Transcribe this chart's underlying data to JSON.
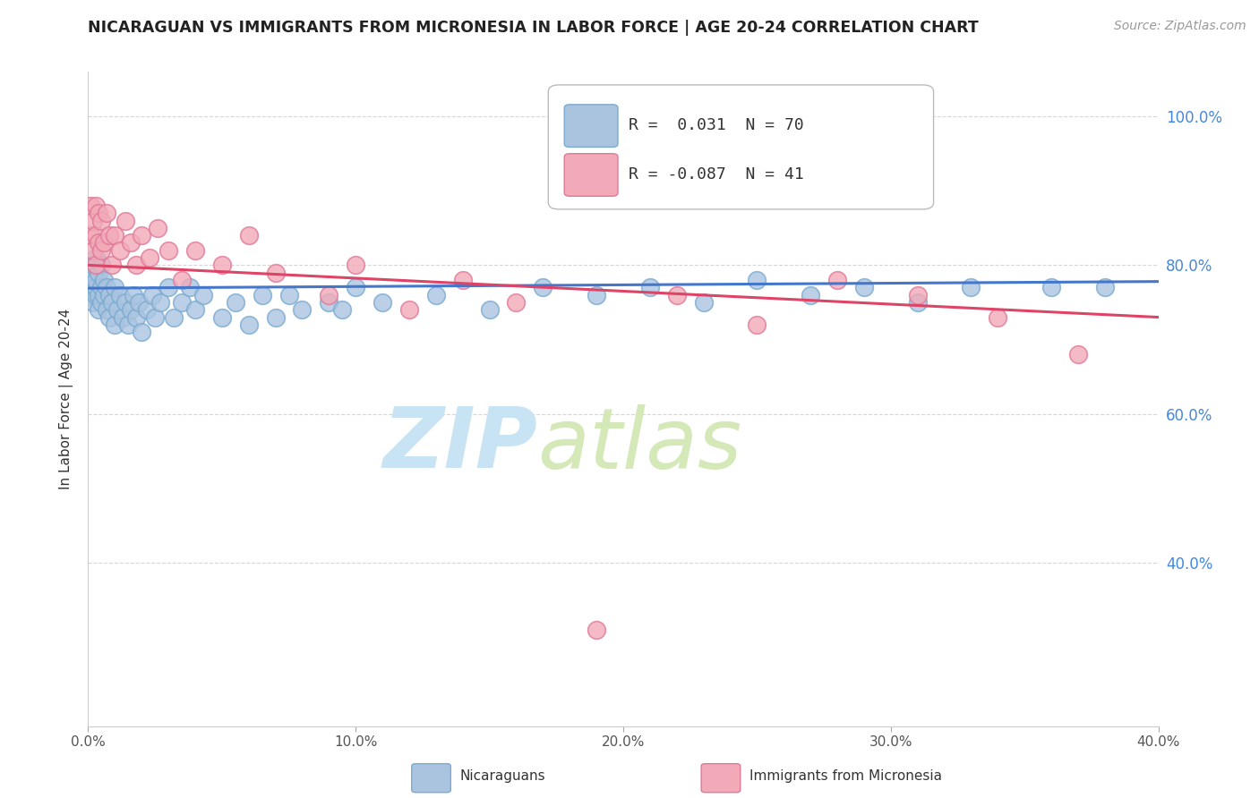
{
  "title": "NICARAGUAN VS IMMIGRANTS FROM MICRONESIA IN LABOR FORCE | AGE 20-24 CORRELATION CHART",
  "source": "Source: ZipAtlas.com",
  "ylabel": "In Labor Force | Age 20-24",
  "xmin": 0.0,
  "xmax": 0.4,
  "ymin": 0.18,
  "ymax": 1.06,
  "yticks": [
    0.4,
    0.6,
    0.8,
    1.0
  ],
  "ytick_labels": [
    "40.0%",
    "60.0%",
    "80.0%",
    "100.0%"
  ],
  "xticks": [
    0.0,
    0.1,
    0.2,
    0.3,
    0.4
  ],
  "xtick_labels": [
    "0.0%",
    "10.0%",
    "20.0%",
    "30.0%",
    "40.0%"
  ],
  "blue_R": 0.031,
  "blue_N": 70,
  "pink_R": -0.087,
  "pink_N": 41,
  "blue_color": "#aac4e0",
  "pink_color": "#f2aab8",
  "blue_edge": "#7aaad0",
  "pink_edge": "#e07898",
  "blue_line_color": "#4477cc",
  "pink_line_color": "#dd4466",
  "blue_trend_x": [
    0.0,
    0.4
  ],
  "blue_trend_y": [
    0.769,
    0.778
  ],
  "pink_trend_x": [
    0.0,
    0.4
  ],
  "pink_trend_y": [
    0.8,
    0.73
  ],
  "blue_x": [
    0.001,
    0.001,
    0.002,
    0.002,
    0.002,
    0.002,
    0.003,
    0.003,
    0.003,
    0.003,
    0.003,
    0.004,
    0.004,
    0.004,
    0.005,
    0.005,
    0.005,
    0.006,
    0.006,
    0.007,
    0.007,
    0.008,
    0.008,
    0.009,
    0.01,
    0.01,
    0.011,
    0.012,
    0.013,
    0.014,
    0.015,
    0.016,
    0.017,
    0.018,
    0.019,
    0.02,
    0.022,
    0.024,
    0.025,
    0.027,
    0.03,
    0.032,
    0.035,
    0.038,
    0.04,
    0.043,
    0.05,
    0.055,
    0.06,
    0.065,
    0.07,
    0.075,
    0.08,
    0.09,
    0.095,
    0.1,
    0.11,
    0.13,
    0.15,
    0.17,
    0.19,
    0.21,
    0.23,
    0.25,
    0.27,
    0.29,
    0.31,
    0.33,
    0.36,
    0.38
  ],
  "blue_y": [
    0.76,
    0.78,
    0.75,
    0.77,
    0.79,
    0.8,
    0.76,
    0.77,
    0.78,
    0.8,
    0.81,
    0.74,
    0.76,
    0.79,
    0.75,
    0.77,
    0.8,
    0.76,
    0.78,
    0.74,
    0.77,
    0.73,
    0.76,
    0.75,
    0.72,
    0.77,
    0.74,
    0.76,
    0.73,
    0.75,
    0.72,
    0.74,
    0.76,
    0.73,
    0.75,
    0.71,
    0.74,
    0.76,
    0.73,
    0.75,
    0.77,
    0.73,
    0.75,
    0.77,
    0.74,
    0.76,
    0.73,
    0.75,
    0.72,
    0.76,
    0.73,
    0.76,
    0.74,
    0.75,
    0.74,
    0.77,
    0.75,
    0.76,
    0.74,
    0.77,
    0.76,
    0.77,
    0.75,
    0.78,
    0.76,
    0.77,
    0.75,
    0.77,
    0.77,
    0.77
  ],
  "pink_x": [
    0.001,
    0.001,
    0.002,
    0.002,
    0.003,
    0.003,
    0.003,
    0.004,
    0.004,
    0.005,
    0.005,
    0.006,
    0.007,
    0.008,
    0.009,
    0.01,
    0.012,
    0.014,
    0.016,
    0.018,
    0.02,
    0.023,
    0.026,
    0.03,
    0.035,
    0.04,
    0.05,
    0.06,
    0.07,
    0.09,
    0.1,
    0.12,
    0.14,
    0.16,
    0.19,
    0.22,
    0.25,
    0.28,
    0.31,
    0.34,
    0.37
  ],
  "pink_y": [
    0.84,
    0.88,
    0.82,
    0.86,
    0.8,
    0.84,
    0.88,
    0.83,
    0.87,
    0.82,
    0.86,
    0.83,
    0.87,
    0.84,
    0.8,
    0.84,
    0.82,
    0.86,
    0.83,
    0.8,
    0.84,
    0.81,
    0.85,
    0.82,
    0.78,
    0.82,
    0.8,
    0.84,
    0.79,
    0.76,
    0.8,
    0.74,
    0.78,
    0.75,
    0.31,
    0.76,
    0.72,
    0.78,
    0.76,
    0.73,
    0.68
  ],
  "watermark_zip_color": "#c8e4f4",
  "watermark_atlas_color": "#d4e8b8"
}
